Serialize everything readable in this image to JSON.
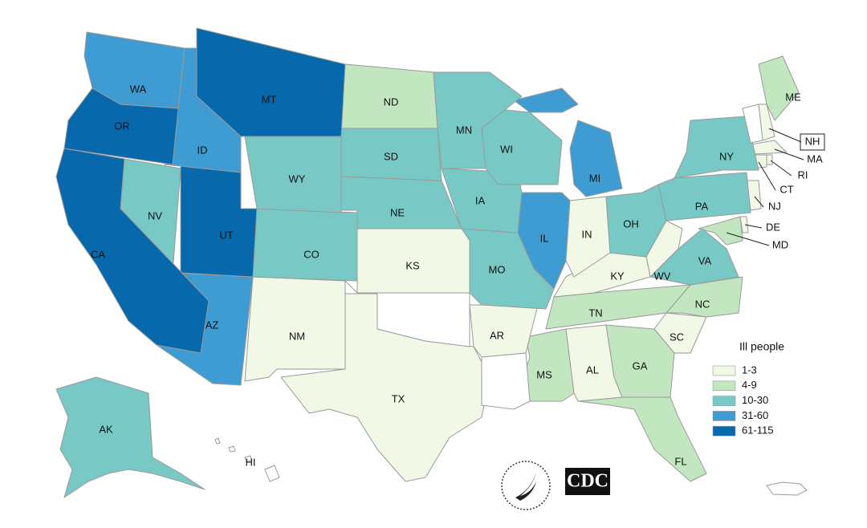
{
  "map": {
    "states": [
      {
        "label": "WA",
        "cases": "31-60"
      },
      {
        "label": "OR",
        "cases": "61-115"
      },
      {
        "label": "CA",
        "cases": "61-115"
      },
      {
        "label": "ID",
        "cases": "31-60"
      },
      {
        "label": "MT",
        "cases": "61-115"
      },
      {
        "label": "ND",
        "cases": "4-9"
      },
      {
        "label": "MN",
        "cases": "10-30"
      },
      {
        "label": "WI",
        "cases": "10-30"
      },
      {
        "label": "MI",
        "cases": "31-60"
      },
      {
        "label": "NY",
        "cases": "10-30"
      },
      {
        "label": "PA",
        "cases": "10-30"
      },
      {
        "label": "OH",
        "cases": "10-30"
      },
      {
        "label": "IN",
        "cases": "1-3"
      },
      {
        "label": "IL",
        "cases": "31-60"
      },
      {
        "label": "WY",
        "cases": "10-30"
      },
      {
        "label": "SD",
        "cases": "10-30"
      },
      {
        "label": "NE",
        "cases": "10-30"
      },
      {
        "label": "IA",
        "cases": "10-30"
      },
      {
        "label": "NV",
        "cases": "10-30"
      },
      {
        "label": "UT",
        "cases": "61-115"
      },
      {
        "label": "CO",
        "cases": "10-30"
      },
      {
        "label": "AZ",
        "cases": "31-60"
      },
      {
        "label": "NM",
        "cases": "1-3"
      },
      {
        "label": "KS",
        "cases": "1-3"
      },
      {
        "label": "MO",
        "cases": "10-30"
      },
      {
        "label": "TX",
        "cases": "1-3"
      },
      {
        "label": "AR",
        "cases": "1-3"
      },
      {
        "label": "KY",
        "cases": "1-3"
      },
      {
        "label": "TN",
        "cases": "4-9"
      },
      {
        "label": "WV",
        "cases": "1-3"
      },
      {
        "label": "VA",
        "cases": "10-30"
      },
      {
        "label": "NC",
        "cases": "4-9"
      },
      {
        "label": "SC",
        "cases": "1-3"
      },
      {
        "label": "GA",
        "cases": "4-9"
      },
      {
        "label": "AL",
        "cases": "1-3"
      },
      {
        "label": "MS",
        "cases": "4-9"
      },
      {
        "label": "FL",
        "cases": "4-9"
      },
      {
        "label": "ME",
        "cases": "4-9"
      },
      {
        "label": "NH",
        "cases": "1-3"
      },
      {
        "label": "MA",
        "cases": "1-3"
      },
      {
        "label": "RI",
        "cases": "1-3"
      },
      {
        "label": "CT",
        "cases": "1-3"
      },
      {
        "label": "NJ",
        "cases": "1-3"
      },
      {
        "label": "DE",
        "cases": "1-3"
      },
      {
        "label": "MD",
        "cases": "4-9"
      },
      {
        "label": "AK",
        "cases": "10-30"
      },
      {
        "label": "HI"
      }
    ]
  },
  "legend": {
    "title": "Ill people",
    "bins": [
      {
        "label": "1-3",
        "color": "#f1f8e6"
      },
      {
        "label": "4-9",
        "color": "#c2e6c0"
      },
      {
        "label": "10-30",
        "color": "#78c9c5"
      },
      {
        "label": "31-60",
        "color": "#3f9cd3"
      },
      {
        "label": "61-115",
        "color": "#0868ac"
      }
    ]
  },
  "logo": "CDC"
}
